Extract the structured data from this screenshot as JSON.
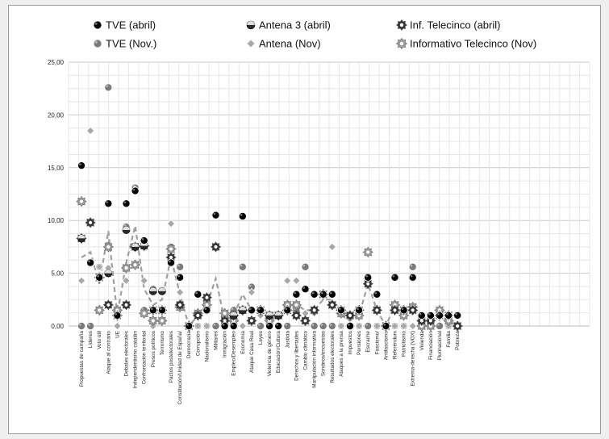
{
  "chart_data": {
    "type": "scatter",
    "ylim": [
      0,
      25
    ],
    "yticks": [
      "0,00",
      "5,00",
      "10,00",
      "15,00",
      "20,00",
      "25,00"
    ],
    "legend_position": "top",
    "grid": true,
    "categories": [
      "Propuestas de campaña",
      "Líderes",
      "Voto útil",
      "Ataque al contrario",
      "UE",
      "Debates electorales",
      "Independentismo catalán",
      "Confrontación territorial",
      "Presos políticos",
      "Terrorismo",
      "Pactos postelectorales",
      "Constitución/Unidad de España/",
      "Democracia",
      "Corrupción",
      "Nacionalismo",
      "Militares",
      "Inmigración",
      "Empleo/Desempleo",
      "Economía",
      "Ataque Casa Real",
      "Leyes",
      "Violencia de género",
      "Educación/Cultura",
      "Justicia",
      "Derechos y libertades",
      "Cambio climático",
      "Manipulación informativa",
      "Sondeos/encuestas",
      "Resultados electorales",
      "Ataques a la prensa",
      "Impuestos",
      "Pensiones",
      "Escrache",
      "Fascismo/",
      "Antifascismo",
      "Referéndum",
      "Patriotismo",
      "Extrema-derecha (VOX)",
      "Vivienda",
      "Financiación",
      "Plurinacional",
      "Familia",
      "Pobreza"
    ],
    "series": [
      {
        "name": "TVE (abril)",
        "color": "#000000",
        "marker": "disc",
        "values": [
          15.2,
          6.0,
          4.6,
          11.6,
          1.0,
          11.6,
          12.8,
          8.1,
          1.5,
          1.5,
          6.0,
          4.6,
          0.0,
          3.0,
          1.5,
          10.5,
          0.0,
          0.0,
          10.4,
          1.5,
          1.5,
          0.0,
          0.0,
          1.5,
          3.0,
          3.5,
          3.0,
          3.0,
          3.0,
          1.5,
          0.0,
          1.5,
          4.6,
          3.0,
          0.0,
          4.6,
          1.5,
          4.6,
          1.0,
          1.0,
          1.0,
          1.0,
          1.0
        ]
      },
      {
        "name": "Antena 3 (abril)",
        "color": "#2a2a2a",
        "marker": "split",
        "values": [
          8.3,
          6.0,
          4.6,
          5.0,
          1.0,
          9.1,
          7.5,
          7.6,
          3.3,
          3.3,
          6.0,
          4.6,
          0.0,
          3.0,
          1.5,
          10.5,
          0.0,
          1.0,
          1.5,
          1.5,
          1.5,
          1.0,
          1.0,
          1.5,
          3.0,
          3.5,
          3.0,
          3.0,
          3.0,
          1.5,
          0.0,
          1.5,
          4.6,
          3.0,
          0.0,
          4.6,
          1.5,
          4.6,
          1.0,
          1.0,
          1.0,
          1.0,
          1.0
        ]
      },
      {
        "name": "Inf. Telecinco (abril)",
        "color": "#333333",
        "marker": "gear",
        "values": [
          8.3,
          9.8,
          4.6,
          2.0,
          1.0,
          2.0,
          7.5,
          7.6,
          1.5,
          1.5,
          6.5,
          2.0,
          0.0,
          1.0,
          2.7,
          7.5,
          0.5,
          1.0,
          1.5,
          0.5,
          1.5,
          1.0,
          1.0,
          1.5,
          1.0,
          0.5,
          1.5,
          3.0,
          2.0,
          1.5,
          1.0,
          1.5,
          4.0,
          1.5,
          0.0,
          1.5,
          1.5,
          1.5,
          0.5,
          0.5,
          1.0,
          1.0,
          0.0
        ]
      },
      {
        "name": "TVE (Nov.)",
        "color": "#7a7a7a",
        "marker": "disc",
        "values": [
          0.0,
          0.0,
          5.6,
          22.6,
          1.0,
          9.4,
          13.1,
          1.5,
          3.5,
          1.5,
          7.5,
          5.6,
          0.0,
          0.0,
          0.0,
          0.0,
          0.0,
          1.5,
          5.6,
          3.7,
          0.0,
          0.0,
          0.0,
          0.0,
          1.5,
          5.6,
          0.0,
          0.0,
          0.0,
          0.0,
          0.0,
          0.0,
          0.0,
          0.0,
          0.0,
          0.0,
          0.0,
          5.6,
          0.0,
          0.0,
          0.0,
          0.0,
          0.0
        ]
      },
      {
        "name": "Antena  (Nov)",
        "color": "#a8a8a8",
        "marker": "diamond",
        "values": [
          4.3,
          18.5,
          5.6,
          5.5,
          0.0,
          4.3,
          12.9,
          4.3,
          0.0,
          3.3,
          9.7,
          3.2,
          0.0,
          0.0,
          0.0,
          10.5,
          0.0,
          0.0,
          0.0,
          3.2,
          1.0,
          0.0,
          1.0,
          4.3,
          4.3,
          1.2,
          1.2,
          3.2,
          7.5,
          0.0,
          0.0,
          0.0,
          7.0,
          0.0,
          0.0,
          0.0,
          0.0,
          0.0,
          0.0,
          0.0,
          1.2,
          0.0,
          0.0
        ]
      },
      {
        "name": "Informativo Telecinco (Nov)",
        "color": "#9a9a9a",
        "marker": "gear",
        "values": [
          11.8,
          9.8,
          1.5,
          7.5,
          1.5,
          5.5,
          5.8,
          1.2,
          0.5,
          0.5,
          7.3,
          1.8,
          0.0,
          1.2,
          2.0,
          7.5,
          1.2,
          0.5,
          1.5,
          0.5,
          1.5,
          0.5,
          1.0,
          2.0,
          2.0,
          0.5,
          1.5,
          3.0,
          2.0,
          1.2,
          1.0,
          1.0,
          7.0,
          1.5,
          0.0,
          2.0,
          1.0,
          1.8,
          0.0,
          0.0,
          1.5,
          0.5,
          0.0
        ]
      }
    ],
    "dashed_line": {
      "color": "#a0a0a0",
      "values": [
        6.5,
        7.0,
        4.0,
        9.0,
        1.0,
        6.0,
        9.5,
        3.5,
        2.0,
        2.5,
        6.5,
        3.0,
        0.0,
        1.0,
        2.0,
        4.5,
        0.5,
        1.0,
        3.0,
        1.5,
        1.0,
        0.5,
        1.0,
        1.5,
        2.0,
        1.5,
        1.5,
        2.5,
        2.5,
        1.0,
        0.5,
        1.0,
        4.0,
        1.5,
        0.0,
        2.0,
        1.0,
        2.0,
        0.5,
        0.5,
        1.0,
        0.5,
        0.0
      ]
    }
  }
}
